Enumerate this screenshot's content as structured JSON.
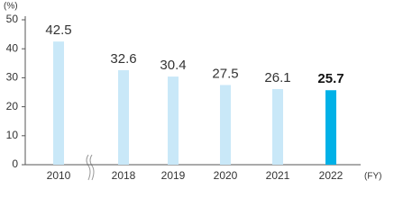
{
  "chart_data": {
    "type": "bar",
    "y_unit": "(%)",
    "x_unit": "(FY)",
    "categories": [
      "2010",
      "2018",
      "2019",
      "2020",
      "2021",
      "2022"
    ],
    "values": [
      42.5,
      32.6,
      30.4,
      27.5,
      26.1,
      25.7
    ],
    "colors": [
      "#c9e8f8",
      "#c9e8f8",
      "#c9e8f8",
      "#c9e8f8",
      "#c9e8f8",
      "#00b1e7"
    ],
    "ylim": [
      0,
      50
    ],
    "yticks": [
      0,
      10,
      20,
      30,
      40,
      50
    ]
  }
}
